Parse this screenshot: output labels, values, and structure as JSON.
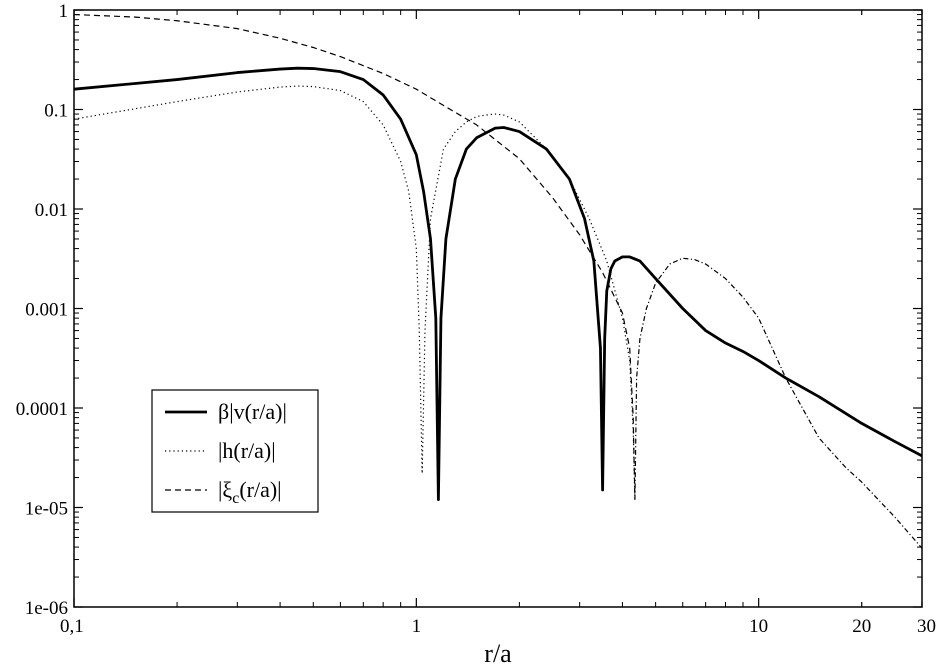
{
  "chart_data": {
    "type": "line",
    "title": "",
    "xlabel": "r/a",
    "ylabel": "",
    "xscale": "log",
    "yscale": "log",
    "xlim": [
      0.1,
      30
    ],
    "ylim": [
      1e-06,
      1
    ],
    "grid": false,
    "legend": {
      "placement": "lower-left"
    },
    "x_ticks": [
      {
        "value": 0.1,
        "label": "0,1"
      },
      {
        "value": 1,
        "label": "1"
      },
      {
        "value": 10,
        "label": "10"
      },
      {
        "value": 20,
        "label": "20"
      },
      {
        "value": 30,
        "label": "30"
      }
    ],
    "y_ticks": [
      {
        "value": 1,
        "label": "1"
      },
      {
        "value": 0.1,
        "label": "0.1"
      },
      {
        "value": 0.01,
        "label": "0.01"
      },
      {
        "value": 0.001,
        "label": "0.001"
      },
      {
        "value": 0.0001,
        "label": "0.0001"
      },
      {
        "value": 1e-05,
        "label": "1e-05"
      },
      {
        "value": 1e-06,
        "label": "1e-06"
      }
    ],
    "series": [
      {
        "name": "β|v(r/a)|",
        "style": "solid",
        "color": "#000000",
        "x": [
          0.1,
          0.2,
          0.3,
          0.4,
          0.45,
          0.5,
          0.6,
          0.7,
          0.8,
          0.9,
          1.0,
          1.05,
          1.1,
          1.14,
          1.16,
          1.18,
          1.22,
          1.3,
          1.4,
          1.5,
          1.7,
          1.8,
          2.0,
          2.4,
          2.8,
          3.1,
          3.3,
          3.45,
          3.5,
          3.55,
          3.6,
          3.7,
          3.8,
          4.0,
          4.2,
          4.5,
          5.0,
          6.0,
          7.0,
          8.0,
          9.0,
          10,
          12,
          15,
          20,
          25,
          30
        ],
        "y": [
          0.16,
          0.2,
          0.235,
          0.255,
          0.26,
          0.258,
          0.24,
          0.2,
          0.14,
          0.08,
          0.035,
          0.015,
          0.005,
          0.0008,
          1.2e-05,
          0.0008,
          0.005,
          0.02,
          0.04,
          0.052,
          0.065,
          0.066,
          0.06,
          0.04,
          0.02,
          0.008,
          0.003,
          0.0004,
          1.5e-05,
          0.0005,
          0.0015,
          0.0025,
          0.003,
          0.0033,
          0.0033,
          0.003,
          0.002,
          0.001,
          0.0006,
          0.00045,
          0.00037,
          0.0003,
          0.0002,
          0.00013,
          7e-05,
          4.6e-05,
          3.3e-05
        ]
      },
      {
        "name": "|h(r/a)|",
        "style": "dotted",
        "color": "#000000",
        "x": [
          0.1,
          0.2,
          0.3,
          0.4,
          0.45,
          0.5,
          0.6,
          0.7,
          0.8,
          0.9,
          0.95,
          1.0,
          1.02,
          1.04,
          1.06,
          1.1,
          1.2,
          1.3,
          1.4,
          1.5,
          1.6,
          1.7,
          1.8,
          2.0,
          2.4,
          2.8,
          3.2,
          3.6,
          4.0,
          4.2,
          4.3,
          4.35
        ],
        "y": [
          0.08,
          0.12,
          0.15,
          0.168,
          0.172,
          0.17,
          0.155,
          0.12,
          0.07,
          0.03,
          0.015,
          0.004,
          0.0006,
          2.2e-05,
          0.0006,
          0.008,
          0.04,
          0.06,
          0.075,
          0.085,
          0.088,
          0.09,
          0.088,
          0.075,
          0.04,
          0.02,
          0.008,
          0.003,
          0.0008,
          0.0003,
          6e-05,
          1.2e-05
        ]
      },
      {
        "name": "|ξ_c(r/a)|",
        "style": "dashed",
        "color": "#000000",
        "x": [
          0.1,
          0.15,
          0.2,
          0.3,
          0.4,
          0.5,
          0.6,
          0.8,
          1.0,
          1.2,
          1.5,
          2.0,
          2.5,
          3.0,
          3.5,
          4.0,
          4.2,
          4.3,
          4.35
        ],
        "y": [
          0.9,
          0.85,
          0.78,
          0.65,
          0.52,
          0.42,
          0.34,
          0.23,
          0.16,
          0.11,
          0.07,
          0.032,
          0.013,
          0.0055,
          0.0023,
          0.0009,
          0.0004,
          8e-05,
          1.2e-05
        ]
      },
      {
        "name": "",
        "style": "dash-dot",
        "color": "#000000",
        "x": [
          4.35,
          4.4,
          4.5,
          4.7,
          5.0,
          5.5,
          6.0,
          6.5,
          7.0,
          8.0,
          9.0,
          10,
          12,
          15,
          18,
          20,
          25,
          30
        ],
        "y": [
          1.2e-05,
          0.0002,
          0.0005,
          0.001,
          0.0018,
          0.0028,
          0.0032,
          0.0031,
          0.0028,
          0.002,
          0.0013,
          0.0008,
          0.0002,
          5e-05,
          2.5e-05,
          1.8e-05,
          8e-06,
          3.9e-06
        ]
      }
    ]
  }
}
